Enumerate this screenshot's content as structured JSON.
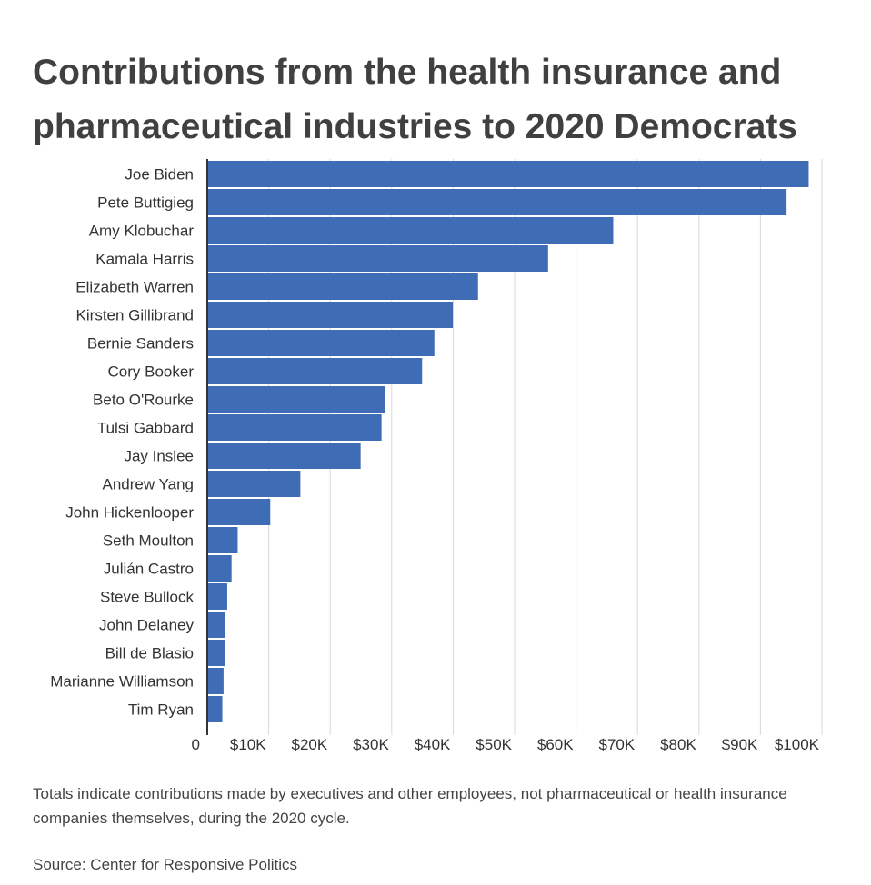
{
  "chart_data": {
    "type": "bar",
    "orientation": "horizontal",
    "title": "Contributions from the health insurance and pharmaceutical industries to 2020 Democrats",
    "categories": [
      "Joe Biden",
      "Pete Buttigieg",
      "Amy Klobuchar",
      "Kamala Harris",
      "Elizabeth Warren",
      "Kirsten Gillibrand",
      "Bernie Sanders",
      "Cory Booker",
      "Beto O'Rourke",
      "Tulsi Gabbard",
      "Jay Inslee",
      "Andrew Yang",
      "John Hickenlooper",
      "Seth Moulton",
      "Julián Castro",
      "Steve Bullock",
      "John Delaney",
      "Bill de Blasio",
      "Marianne Williamson",
      "Tim Ryan"
    ],
    "values": [
      97700,
      94100,
      65900,
      55300,
      43900,
      39800,
      36800,
      34800,
      28800,
      28200,
      24800,
      15000,
      10100,
      4800,
      3800,
      3100,
      2800,
      2700,
      2500,
      2300
    ],
    "xlim": [
      0,
      100000
    ],
    "xticks": [
      0,
      10000,
      20000,
      30000,
      40000,
      50000,
      60000,
      70000,
      80000,
      90000,
      100000
    ],
    "xtick_labels": [
      "0",
      "$10K",
      "$20K",
      "$30K",
      "$40K",
      "$50K",
      "$60K",
      "$70K",
      "$80K",
      "$90K",
      "$100K"
    ],
    "grid": true,
    "bar_color": "#3e6db5",
    "grid_color": "#d9d9d9",
    "axis_color": "#333333",
    "note": "Totals indicate contributions made by executives and other employees, not pharmaceutical or health insurance companies themselves, during the 2020 cycle.",
    "source": "Source: Center for Responsive Politics"
  }
}
